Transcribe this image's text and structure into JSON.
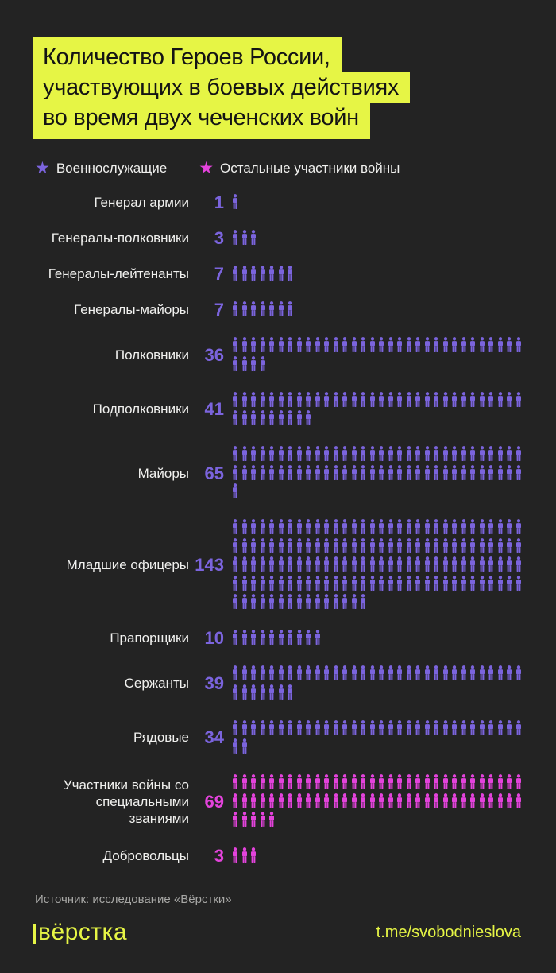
{
  "title": {
    "lines": [
      "Количество Героев России,",
      "участвующих в боевых действиях",
      "во время двух чеченских войн"
    ]
  },
  "colors": {
    "background": "#232323",
    "highlight": "#e6f545",
    "military": "#7b64dd",
    "other": "#e443dc",
    "label_text": "#f0f0ee",
    "source_text": "#a7a7a5"
  },
  "chart_data": {
    "type": "pictogram",
    "title": "Количество Героев России, участвующих в боевых действиях во время двух чеченских войн",
    "unit_per_icon": 1,
    "icons_per_row": 32,
    "legend": [
      {
        "series_id": "military",
        "name": "Военнослужащие",
        "color": "#7b64dd"
      },
      {
        "series_id": "other",
        "name": "Остальные участники войны",
        "color": "#e443dc"
      }
    ],
    "rows": [
      {
        "label": "Генерал армии",
        "value": 1,
        "series": "military"
      },
      {
        "label": "Генералы-полковники",
        "value": 3,
        "series": "military"
      },
      {
        "label": "Генералы-лейтенанты",
        "value": 7,
        "series": "military"
      },
      {
        "label": "Генералы-майоры",
        "value": 7,
        "series": "military"
      },
      {
        "label": "Полковники",
        "value": 36,
        "series": "military"
      },
      {
        "label": "Подполковники",
        "value": 41,
        "series": "military"
      },
      {
        "label": "Майоры",
        "value": 65,
        "series": "military"
      },
      {
        "label": "Младшие офицеры",
        "value": 143,
        "series": "military"
      },
      {
        "label": "Прапорщики",
        "value": 10,
        "series": "military"
      },
      {
        "label": "Сержанты",
        "value": 39,
        "series": "military"
      },
      {
        "label": "Рядовые",
        "value": 34,
        "series": "military"
      },
      {
        "label": "Участники войны со специальными званиями",
        "value": 69,
        "series": "other"
      },
      {
        "label": "Добровольцы",
        "value": 3,
        "series": "other"
      }
    ]
  },
  "footer": {
    "source": "Источник: исследование «Вёрстки»",
    "logo": "Вёрстка",
    "link": "t.me/svobodnieslova"
  }
}
